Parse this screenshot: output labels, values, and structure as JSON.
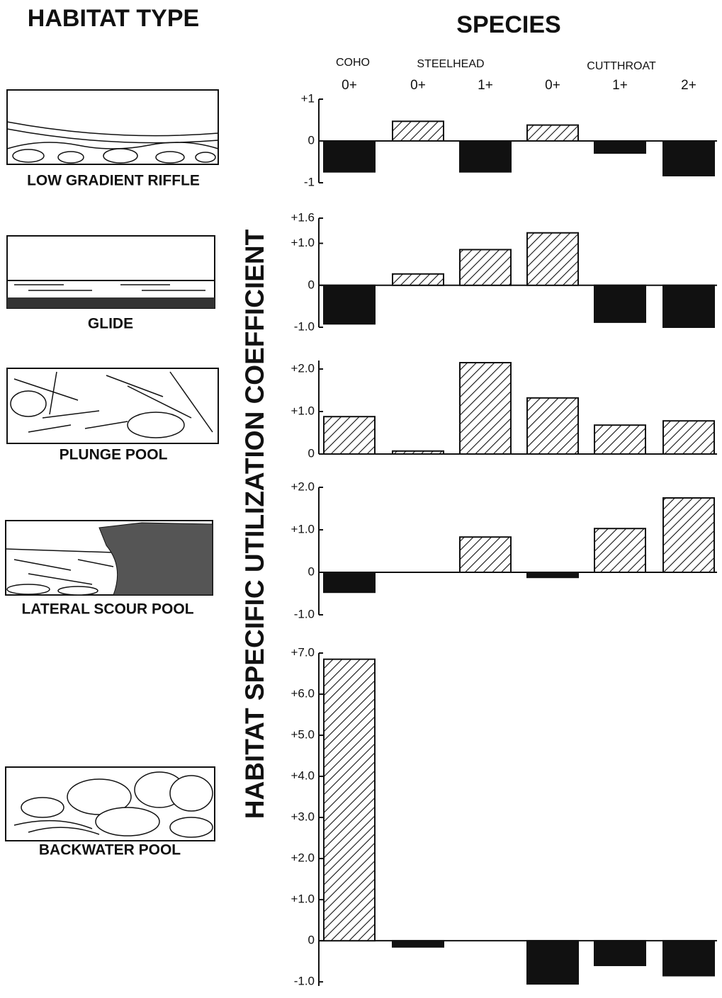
{
  "habitat_title": "HABITAT TYPE",
  "species": {
    "title": "SPECIES",
    "groups": [
      "COHO",
      "STEELHEAD",
      "CUTTHROAT"
    ]
  },
  "ylabel": "HABITAT SPECIFIC UTILIZATION COEFFICIENT",
  "chart_data": [
    {
      "type": "bar",
      "title": "LOW GRADIENT RIFFLE",
      "categories": [
        "0+",
        "0+",
        "1+",
        "0+",
        "1+",
        "2+"
      ],
      "values": [
        -0.74,
        0.47,
        -0.74,
        0.38,
        -0.29,
        -0.83
      ],
      "ylim": [
        -1,
        1
      ],
      "yticks": [
        {
          "value": 1,
          "label": "+1"
        },
        0,
        {
          "value": -1,
          "label": "-1"
        }
      ]
    },
    {
      "type": "bar",
      "title": "GLIDE",
      "values": [
        -0.92,
        0.27,
        0.85,
        1.25,
        -0.88,
        -1.0
      ],
      "ylim": [
        -1.0,
        1.6
      ],
      "yticks": [
        {
          "value": 1.6,
          "label": "+1.6"
        },
        {
          "value": 1.0,
          "label": "+1.0"
        },
        0,
        {
          "value": -1.0,
          "label": "-1.0"
        }
      ]
    },
    {
      "type": "bar",
      "title": "PLUNGE POOL",
      "values": [
        0.88,
        0.07,
        2.15,
        1.32,
        0.68,
        0.78
      ],
      "ylim": [
        0,
        2.2
      ],
      "yticks": [
        {
          "value": 2.0,
          "label": "+2.0"
        },
        {
          "value": 1.0,
          "label": "+1.0"
        },
        0
      ]
    },
    {
      "type": "bar",
      "title": "LATERAL SCOUR POOL",
      "values": [
        -0.47,
        null,
        0.83,
        -0.12,
        1.03,
        1.75
      ],
      "ylim": [
        -1.0,
        2.0
      ],
      "yticks": [
        {
          "value": 2.0,
          "label": "+2.0"
        },
        {
          "value": 1.0,
          "label": "+1.0"
        },
        0,
        {
          "value": -1.0,
          "label": "-1.0"
        }
      ]
    },
    {
      "type": "bar",
      "title": "BACKWATER POOL",
      "values": [
        6.85,
        -0.15,
        null,
        -1.05,
        -0.6,
        -0.85
      ],
      "ylim": [
        -1.1,
        7.0
      ],
      "yticks": [
        {
          "value": 7.0,
          "label": "+7.0"
        },
        {
          "value": 6.0,
          "label": "+6.0"
        },
        {
          "value": 5.0,
          "label": "+5.0"
        },
        {
          "value": 4.0,
          "label": "+4.0"
        },
        {
          "value": 3.0,
          "label": "+3.0"
        },
        {
          "value": 2.0,
          "label": "+2.0"
        },
        {
          "value": 1.0,
          "label": "+1.0"
        },
        0,
        {
          "value": -1.0,
          "label": "-1.0"
        }
      ]
    }
  ]
}
